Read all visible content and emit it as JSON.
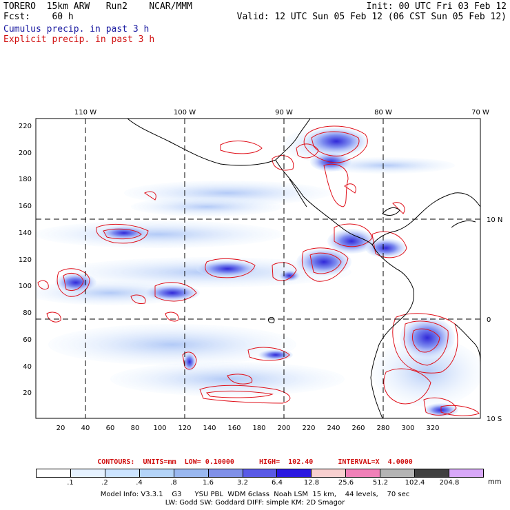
{
  "header": {
    "model": "TORERO  15km ARW   Run2    NCAR/MMM",
    "init": "Init: 00 UTC Fri 03 Feb 12",
    "fcst": "Fcst:    60 h",
    "valid": "Valid: 12 UTC Sun 05 Feb 12 (06 CST Sun 05 Feb 12)",
    "cumulus": "Cumulus precip. in past 3 h",
    "explicit": "Explicit precip. in past 3 h"
  },
  "map": {
    "top_lon_labels": [
      "110 W",
      "100 W",
      "90 W",
      "80 W",
      "70 W"
    ],
    "right_lat_labels": [
      "10 N",
      "0",
      "10 S"
    ],
    "y_ticks": [
      "220",
      "200",
      "180",
      "160",
      "140",
      "120",
      "100",
      "80",
      "60",
      "40",
      "20"
    ],
    "x_ticks": [
      "20",
      "40",
      "60",
      "80",
      "100",
      "120",
      "140",
      "160",
      "180",
      "200",
      "220",
      "240",
      "260",
      "280",
      "300",
      "320"
    ],
    "colors": {
      "contour": "#e0101a",
      "coast": "#000000",
      "grid": "#000000"
    }
  },
  "legend": {
    "contours": "CONTOURS:  UNITS=mm  LOW= 0.10000      HIGH=  102.40      INTERVAL=X  4.0000",
    "unit": "mm",
    "labels": [
      ".1",
      ".2",
      ".4",
      ".8",
      "1.6",
      "3.2",
      "6.4",
      "12.8",
      "25.6",
      "51.2",
      "102.4",
      "204.8"
    ],
    "colors": [
      "#ffffff",
      "#e6f2ff",
      "#cce4ff",
      "#b4d4f8",
      "#9ab8f0",
      "#8090e8",
      "#5a5ae6",
      "#2a18e0",
      "#f8d0d0",
      "#f080b8",
      "#b4b4b4",
      "#404040",
      "#d8a8f8"
    ]
  },
  "footer": {
    "line1": "Model Info: V3.3.1    G3      YSU PBL  WDM 6class  Noah LSM  15 km,    44 levels,    70 sec",
    "line2": "LW: Godd SW: Goddard DIFF: simple KM: 2D Smagor"
  }
}
